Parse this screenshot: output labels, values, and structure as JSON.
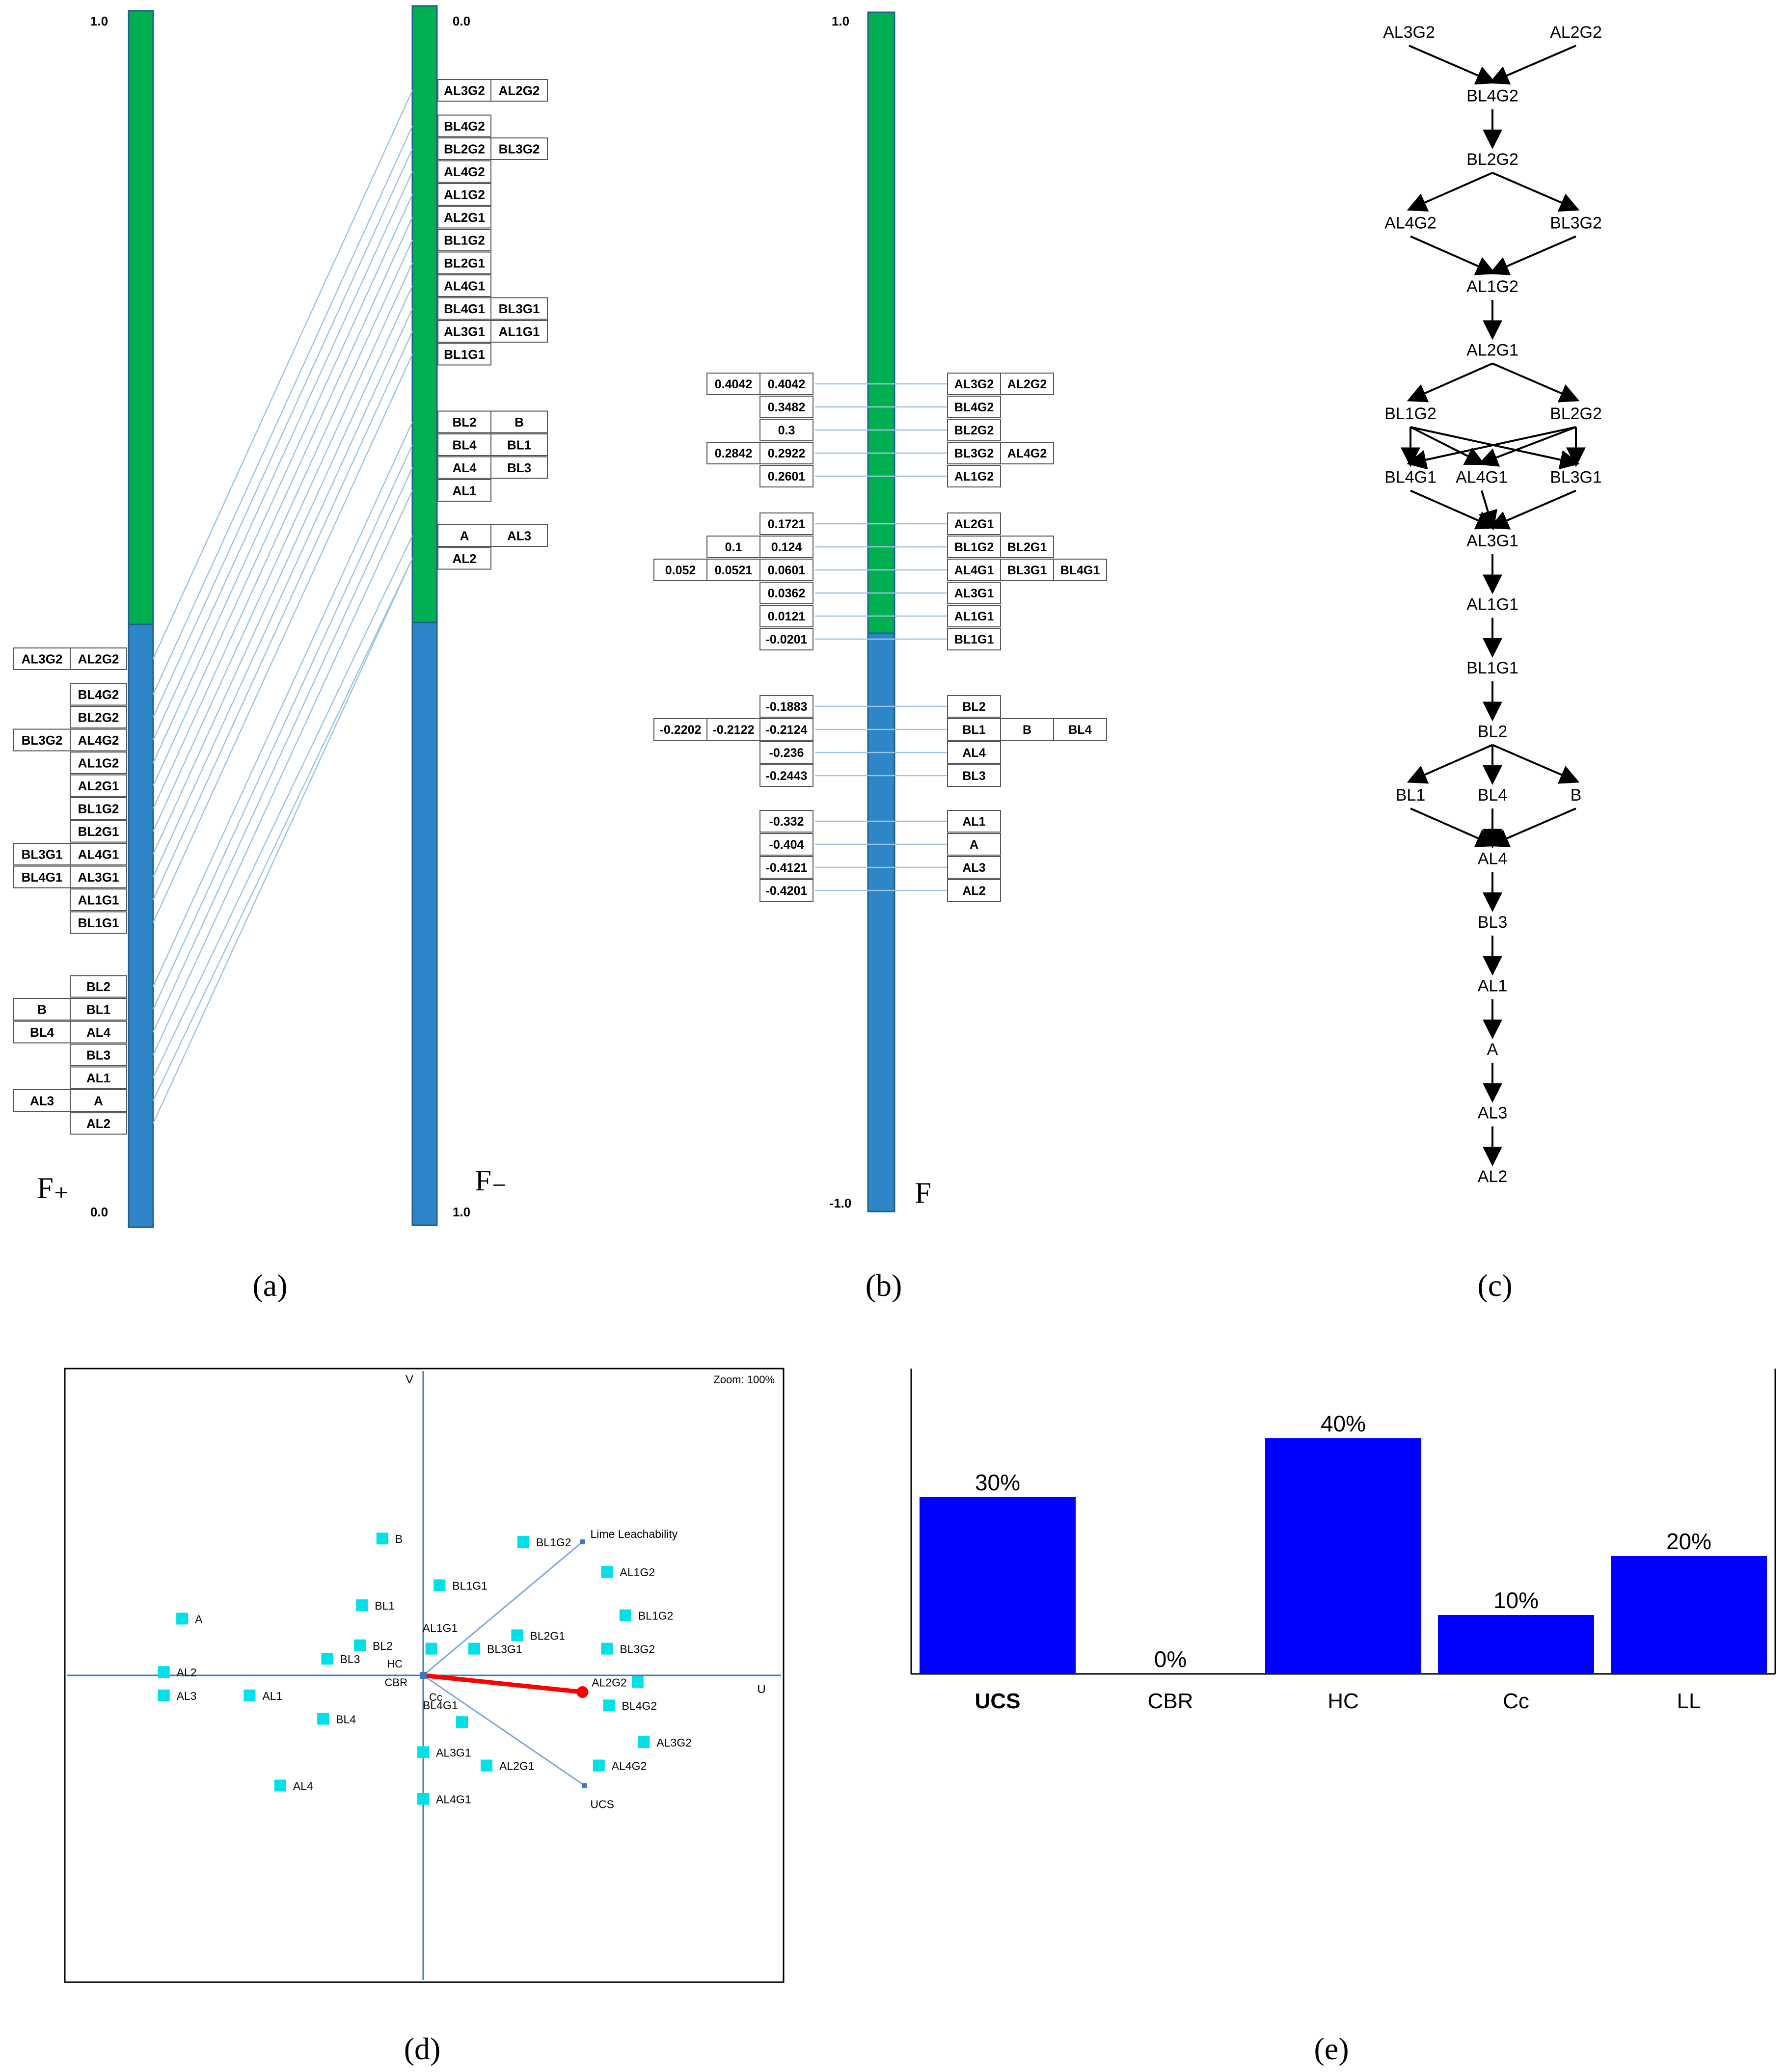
{
  "captions": [
    "(a)",
    "(b)",
    "(c)",
    "(d)",
    "(e)"
  ],
  "panel_a": {
    "fplus_label": "F₊",
    "fminus_label": "F₋",
    "left_top_tick": "1.0",
    "left_bottom_tick": "0.0",
    "right_top_tick": "0.0",
    "right_bottom_tick": "1.0",
    "left_rows": [
      [
        "AL3G2",
        "AL2G2"
      ],
      [
        "",
        "BL4G2"
      ],
      [
        "",
        "BL2G2"
      ],
      [
        "BL3G2",
        "AL4G2"
      ],
      [
        "",
        "AL1G2"
      ],
      [
        "",
        "AL2G1"
      ],
      [
        "",
        "BL1G2"
      ],
      [
        "",
        "BL2G1"
      ],
      [
        "BL3G1",
        "AL4G1"
      ],
      [
        "BL4G1",
        "AL3G1"
      ],
      [
        "",
        "AL1G1"
      ],
      [
        "",
        "BL1G1"
      ],
      [
        "",
        "BL2"
      ],
      [
        "B",
        "BL1"
      ],
      [
        "BL4",
        "AL4"
      ],
      [
        "",
        "BL3"
      ],
      [
        "",
        "AL1"
      ],
      [
        "AL3",
        "A"
      ],
      [
        "",
        "AL2"
      ]
    ],
    "right_rows": [
      [
        "AL3G2",
        "AL2G2"
      ],
      [
        "BL4G2",
        ""
      ],
      [
        "BL2G2",
        "BL3G2"
      ],
      [
        "AL4G2",
        ""
      ],
      [
        "AL1G2",
        ""
      ],
      [
        "AL2G1",
        ""
      ],
      [
        "BL1G2",
        ""
      ],
      [
        "BL2G1",
        ""
      ],
      [
        "AL4G1",
        ""
      ],
      [
        "BL4G1",
        "BL3G1"
      ],
      [
        "AL3G1",
        "AL1G1"
      ],
      [
        "BL1G1",
        ""
      ],
      [
        "BL2",
        "B"
      ],
      [
        "BL4",
        "BL1"
      ],
      [
        "AL4",
        "BL3"
      ],
      [
        "AL1",
        ""
      ],
      [
        "A",
        "AL3"
      ],
      [
        "AL2",
        ""
      ]
    ]
  },
  "panel_b": {
    "axis_label": "F",
    "top_tick": "1.0",
    "bottom_tick": "-1.0",
    "rows": [
      {
        "left": [
          "0.4042",
          "0.4042"
        ],
        "right": [
          "AL3G2",
          "AL2G2"
        ]
      },
      {
        "left": [
          "0.3482"
        ],
        "right": [
          "BL4G2"
        ]
      },
      {
        "left": [
          "0.3"
        ],
        "right": [
          "BL2G2"
        ]
      },
      {
        "left": [
          "0.2842",
          "0.2922"
        ],
        "right": [
          "BL3G2",
          "AL4G2"
        ]
      },
      {
        "left": [
          "0.2601"
        ],
        "right": [
          "AL1G2"
        ]
      },
      {
        "left": [
          "0.1721"
        ],
        "right": [
          "AL2G1"
        ]
      },
      {
        "left": [
          "0.1",
          "0.124"
        ],
        "right": [
          "BL1G2",
          "BL2G1"
        ]
      },
      {
        "left": [
          "0.052",
          "0.0521",
          "0.0601"
        ],
        "right": [
          "AL4G1",
          "BL3G1",
          "BL4G1"
        ]
      },
      {
        "left": [
          "0.0362"
        ],
        "right": [
          "AL3G1"
        ]
      },
      {
        "left": [
          "0.0121"
        ],
        "right": [
          "AL1G1"
        ]
      },
      {
        "left": [
          "-0.0201"
        ],
        "right": [
          "BL1G1"
        ]
      },
      {
        "left": [
          "-0.1883"
        ],
        "right": [
          "BL2"
        ]
      },
      {
        "left": [
          "-0.2202",
          "-0.2122",
          "-0.2124"
        ],
        "right": [
          "BL1",
          "B",
          "BL4"
        ]
      },
      {
        "left": [
          "-0.236"
        ],
        "right": [
          "AL4"
        ]
      },
      {
        "left": [
          "-0.2443"
        ],
        "right": [
          "BL3"
        ]
      },
      {
        "left": [
          "-0.332"
        ],
        "right": [
          "AL1"
        ]
      },
      {
        "left": [
          "-0.404"
        ],
        "right": [
          "A"
        ]
      },
      {
        "left": [
          "-0.4121"
        ],
        "right": [
          "AL3"
        ]
      },
      {
        "left": [
          "-0.4201"
        ],
        "right": [
          "AL2"
        ]
      }
    ]
  },
  "panel_c": {
    "levels": [
      [
        "AL3G2",
        "AL2G2"
      ],
      [
        "BL4G2"
      ],
      [
        "BL2G2"
      ],
      [
        "AL4G2",
        "BL3G2"
      ],
      [
        "AL1G2"
      ],
      [
        "AL2G1"
      ],
      [
        "BL1G2",
        "BL2G2"
      ],
      [
        "BL4G1",
        "AL4G1",
        "BL3G1"
      ],
      [
        "AL3G1"
      ],
      [
        "AL1G1"
      ],
      [
        "BL1G1"
      ],
      [
        "BL2"
      ],
      [
        "BL1",
        "BL4",
        "B"
      ],
      [
        "AL4"
      ],
      [
        "BL3"
      ],
      [
        "AL1"
      ],
      [
        "A"
      ],
      [
        "AL3"
      ],
      [
        "AL2"
      ]
    ]
  },
  "panel_d": {
    "zoom": "Zoom: 100%",
    "axis_v": "V",
    "axis_u": "U",
    "near_origin": [
      "HC",
      "CBR",
      "Cc"
    ],
    "criteria": [
      "Lime Leachability",
      "UCS"
    ],
    "points": [
      {
        "label": "B",
        "u": -0.2,
        "v": 0.41
      },
      {
        "label": "BL1G2",
        "u": 0.49,
        "v": 0.4
      },
      {
        "label": "AL1G2",
        "u": 0.9,
        "v": 0.31
      },
      {
        "label": "BL1G1",
        "u": 0.08,
        "v": 0.27
      },
      {
        "label": "BL1",
        "u": -0.3,
        "v": 0.21
      },
      {
        "label": "A",
        "u": -1.18,
        "v": 0.17
      },
      {
        "label": "BL1G2",
        "u": 0.99,
        "v": 0.18
      },
      {
        "label": "AL1G1",
        "u": 0.04,
        "v": 0.08
      },
      {
        "label": "BL2G1",
        "u": 0.46,
        "v": 0.12
      },
      {
        "label": "BL3G1",
        "u": 0.25,
        "v": 0.08
      },
      {
        "label": "BL3G2",
        "u": 0.9,
        "v": 0.08
      },
      {
        "label": "BL2",
        "u": -0.31,
        "v": 0.09
      },
      {
        "label": "BL3",
        "u": -0.47,
        "v": 0.05
      },
      {
        "label": "AL2",
        "u": -1.27,
        "v": 0.01
      },
      {
        "label": "AL2G2",
        "u": 1.05,
        "v": -0.02
      },
      {
        "label": "AL3",
        "u": -1.27,
        "v": -0.06
      },
      {
        "label": "AL1",
        "u": -0.85,
        "v": -0.06
      },
      {
        "label": "BL4G2",
        "u": 0.91,
        "v": -0.09
      },
      {
        "label": "BL4",
        "u": -0.49,
        "v": -0.13
      },
      {
        "label": "BL4G1",
        "u": 0.19,
        "v": -0.14
      },
      {
        "label": "AL3G1",
        "u": 0.0,
        "v": -0.23
      },
      {
        "label": "AL2G1",
        "u": 0.31,
        "v": -0.27
      },
      {
        "label": "AL4G2",
        "u": 0.86,
        "v": -0.27
      },
      {
        "label": "AL3G2",
        "u": 1.08,
        "v": -0.2
      },
      {
        "label": "AL4",
        "u": -0.7,
        "v": -0.33
      },
      {
        "label": "AL4G1",
        "u": 0.0,
        "v": -0.37
      }
    ],
    "lime_vec": {
      "u": 0.78,
      "v": 0.4
    },
    "ucs_vec": {
      "u": 0.79,
      "v": -0.33
    },
    "decision_vec": {
      "u": 0.78,
      "v": -0.05
    }
  },
  "chart_data": {
    "type": "bar",
    "categories": [
      "UCS",
      "CBR",
      "HC",
      "Cc",
      "LL"
    ],
    "values": [
      30,
      0,
      40,
      10,
      20
    ],
    "value_labels": [
      "30%",
      "0%",
      "40%",
      "10%",
      "20%"
    ],
    "bold_category": "UCS",
    "color": "#0000ff",
    "ylim": [
      0,
      50
    ]
  },
  "colors": {
    "green": "#00b050",
    "blue": "#2e86c8",
    "line": "#9dc3e6",
    "cyan": "#00e0e8",
    "red": "#ff0000"
  }
}
